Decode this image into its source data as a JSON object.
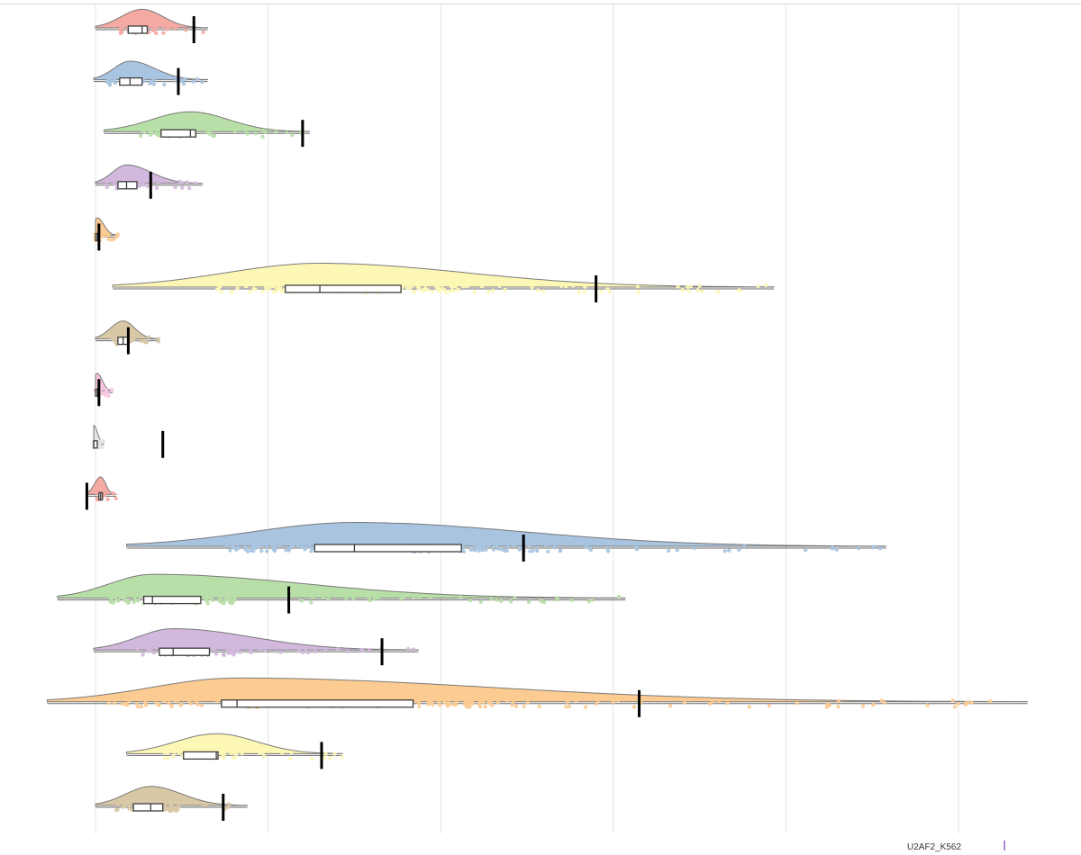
{
  "chart_data": {
    "type": "raincloud",
    "xlim": [
      0,
      5.5
    ],
    "grid": true,
    "legend": "none",
    "series": [
      {
        "color": "#f4a9a3",
        "min": 0.0,
        "q1": 0.19,
        "median": 0.27,
        "q3": 0.3,
        "max": 0.65,
        "threshold": 0.57
      },
      {
        "color": "#a8c4e0",
        "min": -0.01,
        "q1": 0.14,
        "median": 0.2,
        "q3": 0.27,
        "max": 0.65,
        "threshold": 0.48
      },
      {
        "color": "#b9dfa8",
        "min": 0.05,
        "q1": 0.38,
        "median": 0.55,
        "q3": 0.58,
        "max": 1.24,
        "threshold": 1.2
      },
      {
        "color": "#d2b8dc",
        "min": 0.0,
        "q1": 0.13,
        "median": 0.18,
        "q3": 0.24,
        "max": 0.62,
        "threshold": 0.32
      },
      {
        "color": "#fbcb92",
        "min": 0.0,
        "q1": 0.0,
        "median": 0.01,
        "q3": 0.01,
        "max": 0.13,
        "threshold": 0.02
      },
      {
        "color": "#fdf7b6",
        "min": 0.1,
        "q1": 1.1,
        "median": 1.3,
        "q3": 1.77,
        "max": 3.93,
        "threshold": 2.9
      },
      {
        "color": "#d8c8a6",
        "min": 0.0,
        "q1": 0.13,
        "median": 0.16,
        "q3": 0.19,
        "max": 0.37,
        "threshold": 0.19
      },
      {
        "color": "#f8c6e2",
        "min": 0.0,
        "q1": 0.0,
        "median": 0.01,
        "q3": 0.01,
        "max": 0.1,
        "threshold": 0.02
      },
      {
        "color": "#e6e6e6",
        "min": -0.01,
        "q1": -0.01,
        "median": -0.01,
        "q3": 0.01,
        "max": 0.05,
        "threshold": 0.39
      },
      {
        "color": "#f4a9a3",
        "min": -0.05,
        "q1": 0.02,
        "median": 0.03,
        "q3": 0.04,
        "max": 0.12,
        "threshold": -0.05
      },
      {
        "color": "#a8c4e0",
        "min": 0.18,
        "q1": 1.27,
        "median": 1.5,
        "q3": 2.12,
        "max": 4.58,
        "threshold": 2.48
      },
      {
        "color": "#b9dfa8",
        "min": -0.22,
        "q1": 0.28,
        "median": 0.33,
        "q3": 0.61,
        "max": 3.07,
        "threshold": 1.12
      },
      {
        "color": "#d2b8dc",
        "min": -0.01,
        "q1": 0.37,
        "median": 0.45,
        "q3": 0.66,
        "max": 1.87,
        "threshold": 1.66
      },
      {
        "color": "#fbcb92",
        "min": -0.28,
        "q1": 0.73,
        "median": 0.82,
        "q3": 1.84,
        "max": 5.4,
        "threshold": 3.15
      },
      {
        "color": "#fdf7b6",
        "min": 0.18,
        "q1": 0.51,
        "median": 0.7,
        "q3": 0.71,
        "max": 1.43,
        "threshold": 1.31
      },
      {
        "color": "#d8c8a6",
        "min": 0.0,
        "q1": 0.22,
        "median": 0.32,
        "q3": 0.39,
        "max": 0.88,
        "threshold": 0.74
      }
    ]
  },
  "footer": {
    "label": "U2AF2_K562",
    "mark_color": "#a98ad6"
  }
}
